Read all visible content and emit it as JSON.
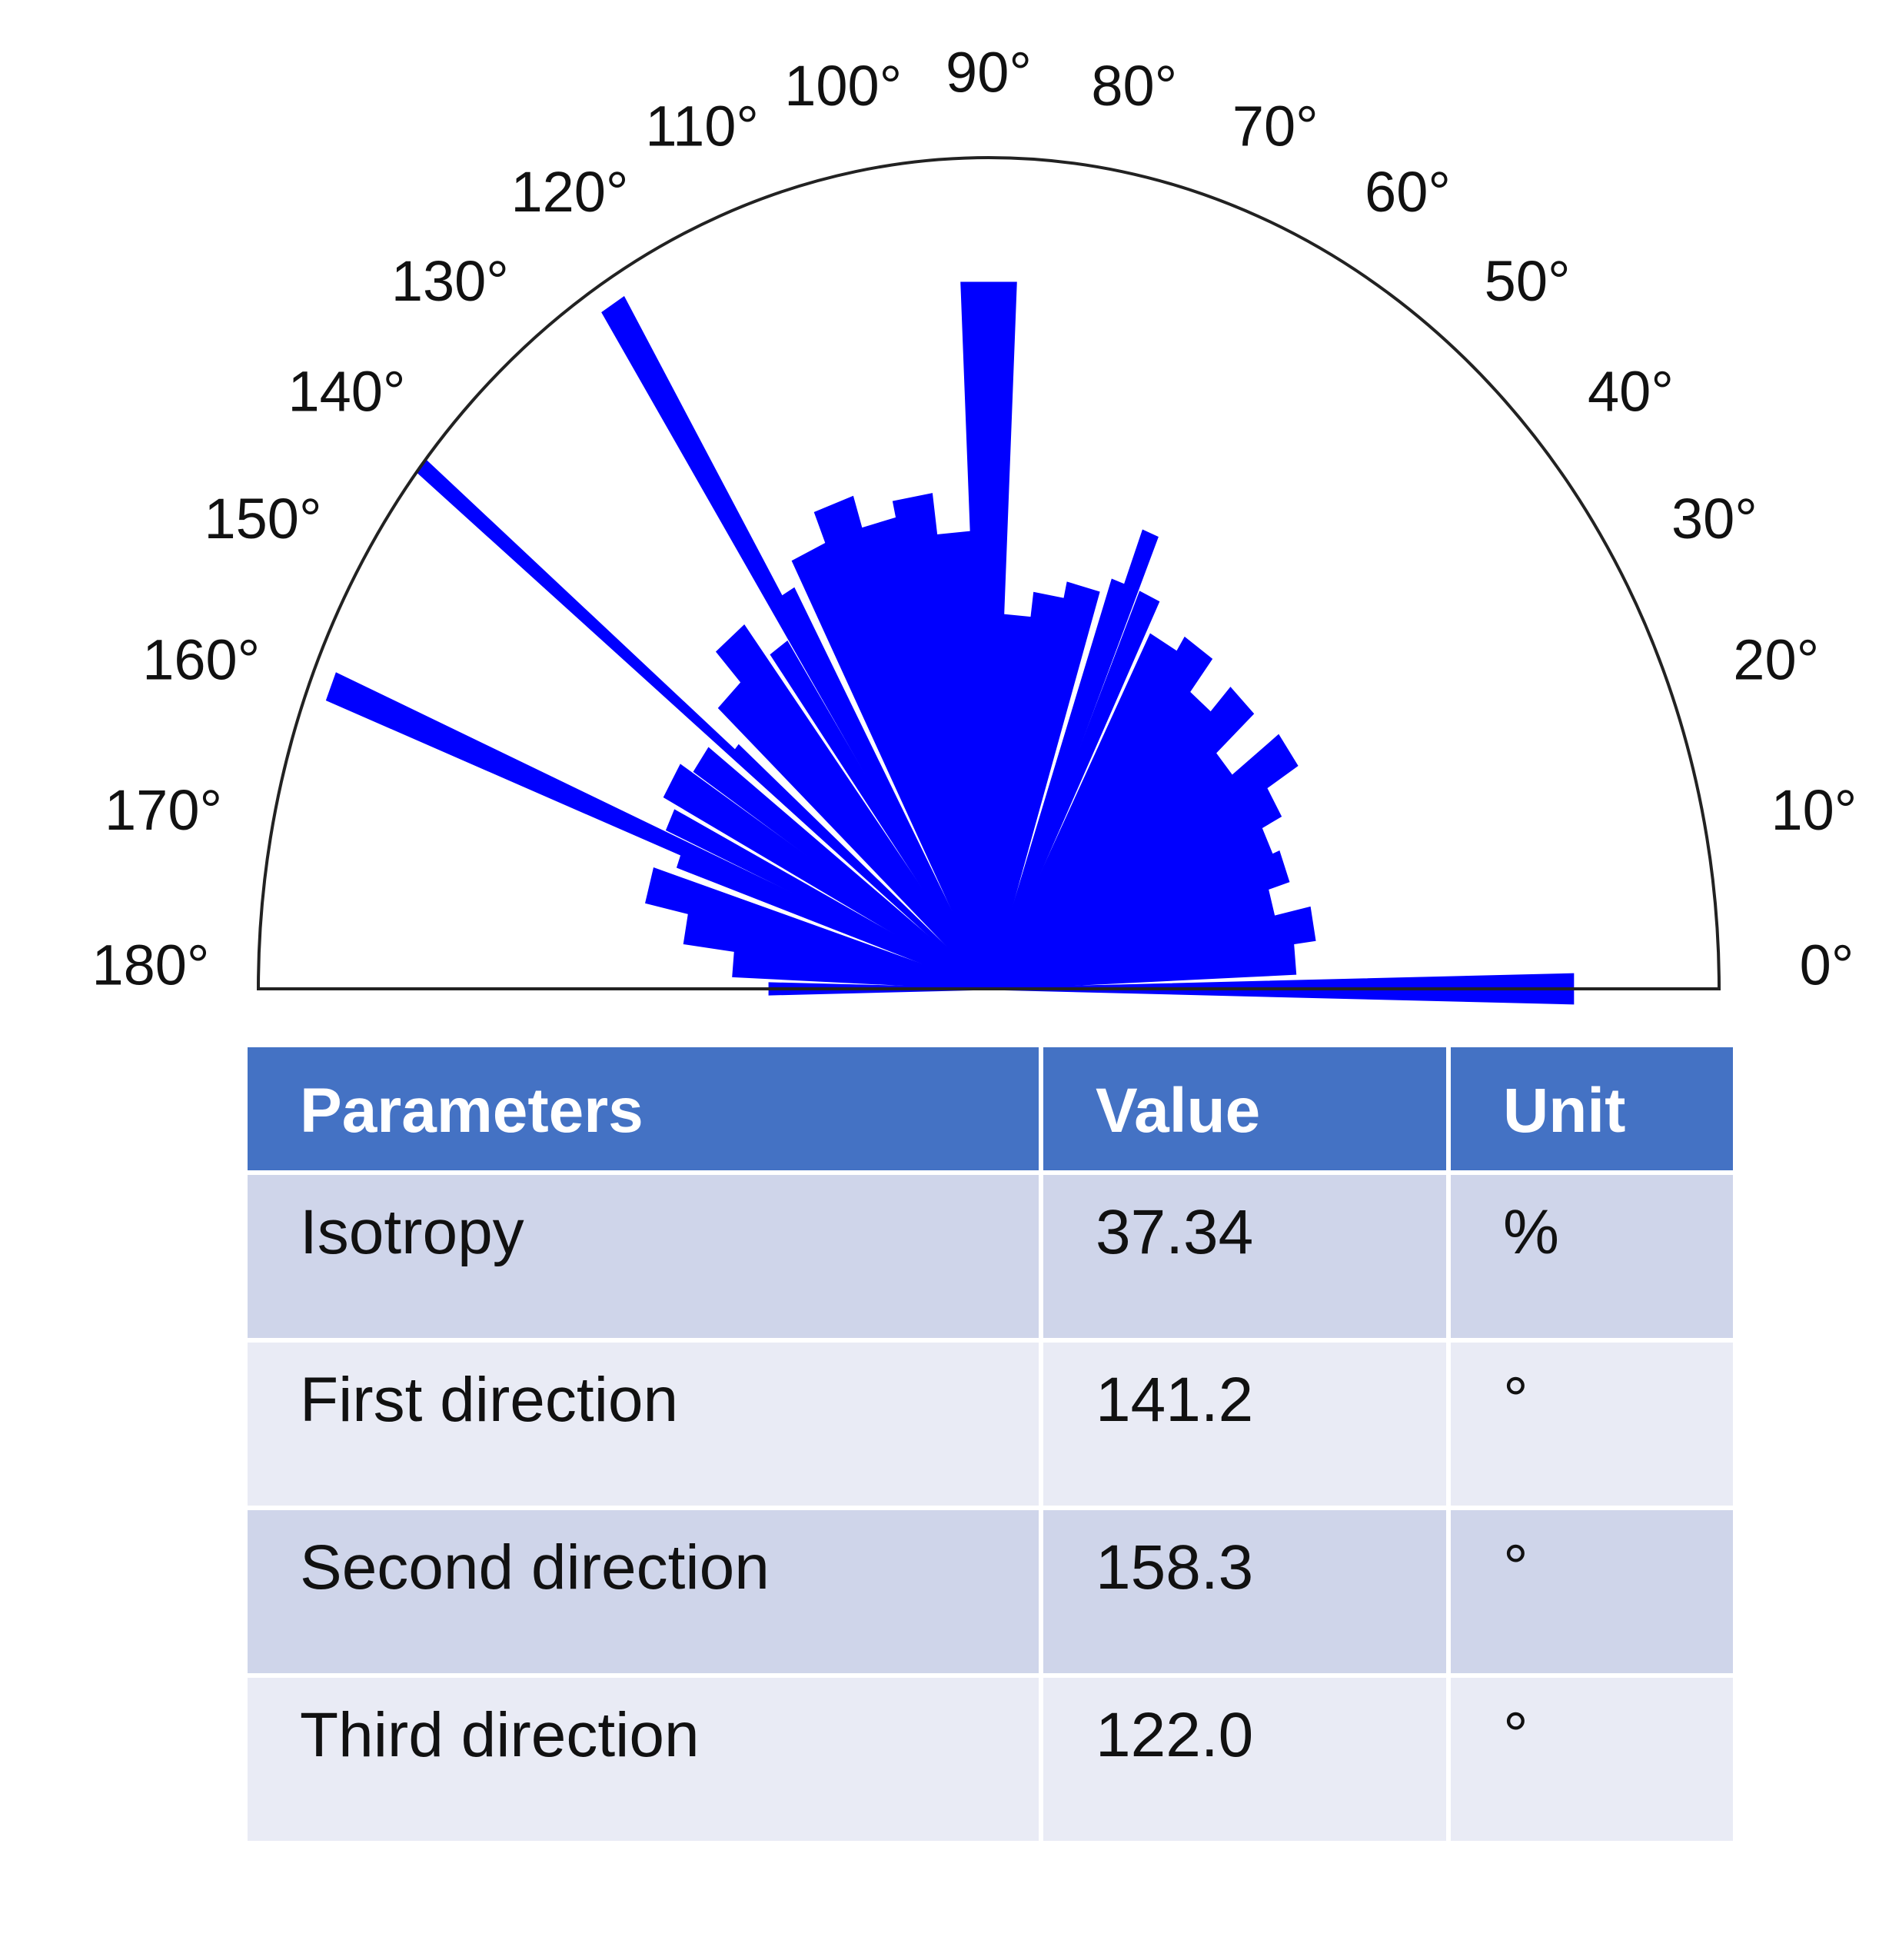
{
  "chart_data": {
    "type": "polar-rose",
    "x": [
      0,
      5,
      10,
      15,
      20,
      25,
      30,
      35,
      40,
      45,
      50,
      55,
      60,
      65,
      68,
      70,
      75,
      80,
      85,
      90,
      95,
      100,
      105,
      110,
      115,
      120,
      122,
      125,
      130,
      135,
      140,
      141,
      145,
      150,
      155,
      158,
      160,
      165,
      170,
      175,
      180
    ],
    "values": [
      0.8,
      0.42,
      0.45,
      0.4,
      0.43,
      0.42,
      0.45,
      0.5,
      0.42,
      0.49,
      0.45,
      0.5,
      0.48,
      0.52,
      0.59,
      0.52,
      0.5,
      0.48,
      0.45,
      0.85,
      0.55,
      0.6,
      0.58,
      0.62,
      0.58,
      0.55,
      0.97,
      0.5,
      0.55,
      0.5,
      0.45,
      1.0,
      0.48,
      0.5,
      0.48,
      0.97,
      0.45,
      0.48,
      0.42,
      0.35,
      0.3
    ],
    "color": "#0000ff",
    "rlim": [
      0,
      1
    ],
    "xlim": [
      0,
      180
    ],
    "xticks": [
      {
        "value": 0,
        "label": "0°"
      },
      {
        "value": 10,
        "label": "10°"
      },
      {
        "value": 20,
        "label": "20°"
      },
      {
        "value": 30,
        "label": "30°"
      },
      {
        "value": 40,
        "label": "40°"
      },
      {
        "value": 50,
        "label": "50°"
      },
      {
        "value": 60,
        "label": "60°"
      },
      {
        "value": 70,
        "label": "70°"
      },
      {
        "value": 80,
        "label": "80°"
      },
      {
        "value": 90,
        "label": "90°"
      },
      {
        "value": 100,
        "label": "100°"
      },
      {
        "value": 110,
        "label": "110°"
      },
      {
        "value": 120,
        "label": "120°"
      },
      {
        "value": 130,
        "label": "130°"
      },
      {
        "value": 140,
        "label": "140°"
      },
      {
        "value": 150,
        "label": "150°"
      },
      {
        "value": 160,
        "label": "160°"
      },
      {
        "value": 170,
        "label": "170°"
      },
      {
        "value": 180,
        "label": "180°"
      }
    ]
  },
  "table": {
    "header": [
      "Parameters",
      "Value",
      "Unit"
    ],
    "rows": [
      [
        "Isotropy",
        "37.34",
        "%"
      ],
      [
        "First direction",
        "141.2",
        "°"
      ],
      [
        "Second direction",
        "158.3",
        "°"
      ],
      [
        "Third direction",
        "122.0",
        "°"
      ]
    ]
  }
}
